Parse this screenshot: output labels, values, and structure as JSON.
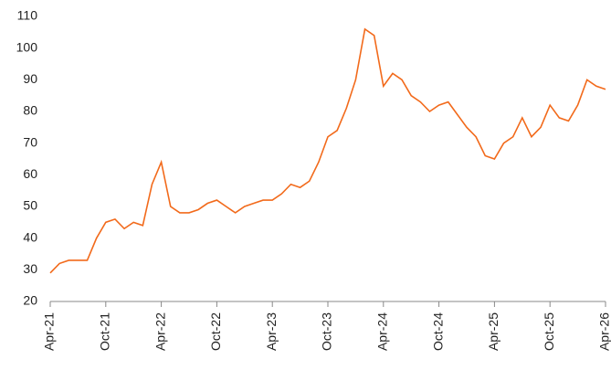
{
  "chart_data": {
    "type": "line",
    "categories": [
      "Apr-21",
      null,
      null,
      null,
      null,
      null,
      "Oct-21",
      null,
      null,
      null,
      null,
      null,
      "Apr-22",
      null,
      null,
      null,
      null,
      null,
      "Oct-22",
      null,
      null,
      null,
      null,
      null,
      "Apr-23",
      null,
      null,
      null,
      null,
      null,
      "Oct-23",
      null,
      null,
      null,
      null,
      null,
      "Apr-24",
      null,
      null,
      null,
      null,
      null,
      "Oct-24",
      null,
      null,
      null,
      null,
      null,
      "Apr-25",
      null,
      null,
      null,
      null,
      null,
      "Oct-25",
      null,
      null,
      null,
      null,
      null,
      "Apr-26"
    ],
    "series": [
      {
        "color": "#f26a1b",
        "values": [
          29,
          32,
          33,
          33,
          33,
          40,
          45,
          46,
          43,
          45,
          44,
          57,
          64,
          50,
          48,
          48,
          49,
          51,
          52,
          50,
          48,
          50,
          51,
          52,
          52,
          54,
          57,
          56,
          58,
          64,
          72,
          74,
          81,
          90,
          106,
          104,
          88,
          92,
          90,
          85,
          83,
          80,
          82,
          83,
          79,
          75,
          72,
          66,
          65,
          70,
          72,
          78,
          72,
          75,
          82,
          78,
          77,
          82,
          90,
          88,
          87
        ]
      }
    ],
    "ylim": [
      20,
      110
    ],
    "yticks": [
      20,
      30,
      40,
      50,
      60,
      70,
      80,
      90,
      100,
      110
    ],
    "grid": false
  }
}
